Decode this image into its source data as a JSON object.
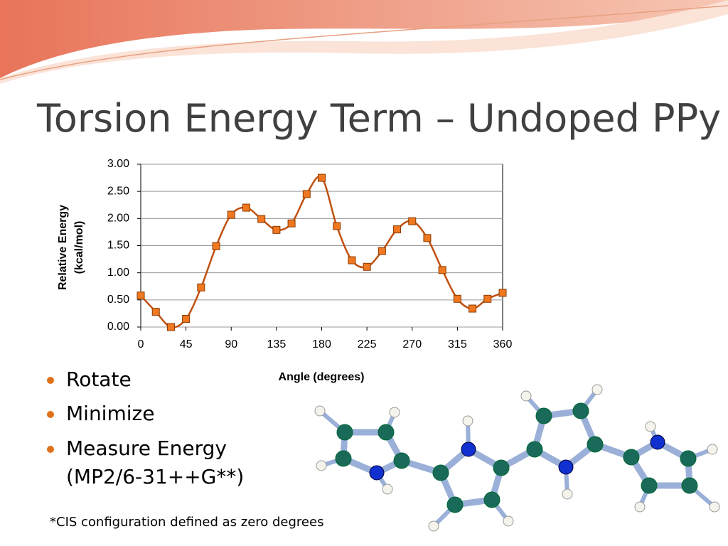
{
  "title": "Torsion Energy Term – Undoped PPy",
  "bullets": [
    "Rotate",
    "Minimize",
    "Measure Energy (MP2/6-31++G**)"
  ],
  "footnote": "*CIS configuration defined as zero degrees",
  "chart_data": {
    "type": "line",
    "ylabel": [
      "Relative Energy",
      "(kcal/mol)"
    ],
    "xlabel": "Angle (degrees)",
    "x": [
      0,
      15,
      30,
      45,
      60,
      75,
      90,
      105,
      120,
      135,
      150,
      165,
      180,
      195,
      210,
      225,
      240,
      255,
      270,
      285,
      300,
      315,
      330,
      345,
      360
    ],
    "series": [
      {
        "color": "#c05010",
        "marker_color": "#f07820",
        "values": [
          0.58,
          0.28,
          0.0,
          0.15,
          0.73,
          1.49,
          2.07,
          2.2,
          1.99,
          1.79,
          1.91,
          2.45,
          2.75,
          1.86,
          1.23,
          1.11,
          1.4,
          1.8,
          1.95,
          1.64,
          1.05,
          0.52,
          0.34,
          0.52,
          0.63
        ]
      }
    ],
    "xlim": [
      0,
      360
    ],
    "xticks": [
      0,
      45,
      90,
      135,
      180,
      225,
      270,
      315,
      360
    ],
    "ylim": [
      0,
      3
    ],
    "yticks": [
      {
        "value": 0,
        "label": "0.00"
      },
      {
        "value": 0.5,
        "label": "0.50"
      },
      {
        "value": 1,
        "label": "1.00"
      },
      {
        "value": 1.5,
        "label": "1.50"
      },
      {
        "value": 2,
        "label": "2.00"
      },
      {
        "value": 2.5,
        "label": "2.50"
      },
      {
        "value": 3,
        "label": "3.00"
      }
    ],
    "grid": true
  }
}
